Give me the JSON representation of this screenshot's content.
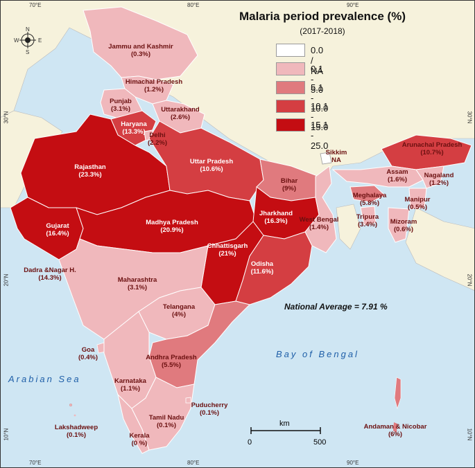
{
  "title": "Malaria period prevalence (%)",
  "subtitle": "(2017-2018)",
  "legend": [
    {
      "label": "0.0 / NA",
      "color": "#ffffff"
    },
    {
      "label": "0.1 - 5.0",
      "color": "#f0b8bc"
    },
    {
      "label": "5.1 - 10.0",
      "color": "#e07a7e"
    },
    {
      "label": "10.1 - 15.0",
      "color": "#d43e42"
    },
    {
      "label": "15.1 - 25.0",
      "color": "#c40d12"
    }
  ],
  "national_average": "National Average = 7.91 %",
  "seas": {
    "arabian": "Arabian Sea",
    "bengal": "Bay of Bengal"
  },
  "scale": {
    "unit": "km",
    "start": "0",
    "end": "500"
  },
  "grid": {
    "top": [
      "70°E",
      "80°E",
      "90°E"
    ],
    "bottom": [
      "70°E",
      "80°E",
      "90°E"
    ],
    "left": [
      "30°N",
      "20°N",
      "10°N"
    ],
    "right": [
      "30°N",
      "20°N",
      "10°N"
    ]
  },
  "compass": {
    "n": "N",
    "s": "S",
    "e": "E",
    "w": "W"
  },
  "states": [
    {
      "name": "Jammu and Kashmir",
      "value": "(0.3%)"
    },
    {
      "name": "Himachal Pradesh",
      "value": "(1.2%)"
    },
    {
      "name": "Punjab",
      "value": "(3.1%)"
    },
    {
      "name": "Uttarakhand",
      "value": "(2.6%)"
    },
    {
      "name": "Haryana",
      "value": "(13.3%)"
    },
    {
      "name": "Delhi",
      "value": "(2.2%)"
    },
    {
      "name": "Rajasthan",
      "value": "(23.3%)"
    },
    {
      "name": "Uttar Pradesh",
      "value": "(10.6%)"
    },
    {
      "name": "Bihar",
      "value": "(9%)"
    },
    {
      "name": "Sikkim",
      "value": "NA"
    },
    {
      "name": "Arunachal Pradesh",
      "value": "(10.7%)"
    },
    {
      "name": "Assam",
      "value": "(1.6%)"
    },
    {
      "name": "Nagaland",
      "value": "(1.2%)"
    },
    {
      "name": "Meghalaya",
      "value": "(5.8%)"
    },
    {
      "name": "Manipur",
      "value": "(0.5%)"
    },
    {
      "name": "Tripura",
      "value": "(3.4%)"
    },
    {
      "name": "Mizoram",
      "value": "(0.6%)"
    },
    {
      "name": "Gujarat",
      "value": "(16.4%)"
    },
    {
      "name": "Madhya Pradesh",
      "value": "(20.9%)"
    },
    {
      "name": "Jharkhand",
      "value": "(16.3%)"
    },
    {
      "name": "West Bengal",
      "value": "(1.4%)"
    },
    {
      "name": "Chhattisgarh",
      "value": "(21%)"
    },
    {
      "name": "Odisha",
      "value": "(11.6%)"
    },
    {
      "name": "Dadra &Nagar H.",
      "value": "(14.3%)"
    },
    {
      "name": "Maharashtra",
      "value": "(3.1%)"
    },
    {
      "name": "Telangana",
      "value": "(4%)"
    },
    {
      "name": "Goa",
      "value": "(0.4%)"
    },
    {
      "name": "Andhra Pradesh",
      "value": "(5.5%)"
    },
    {
      "name": "Karnataka",
      "value": "(1.1%)"
    },
    {
      "name": "Puducherry",
      "value": "(0.1%)"
    },
    {
      "name": "Tamil Nadu",
      "value": "(0.1%)"
    },
    {
      "name": "Lakshadweep",
      "value": "(0.1%)"
    },
    {
      "name": "Kerala",
      "value": "(0 %)"
    },
    {
      "name": "Andaman & Nicobar",
      "value": "(6%)"
    }
  ]
}
